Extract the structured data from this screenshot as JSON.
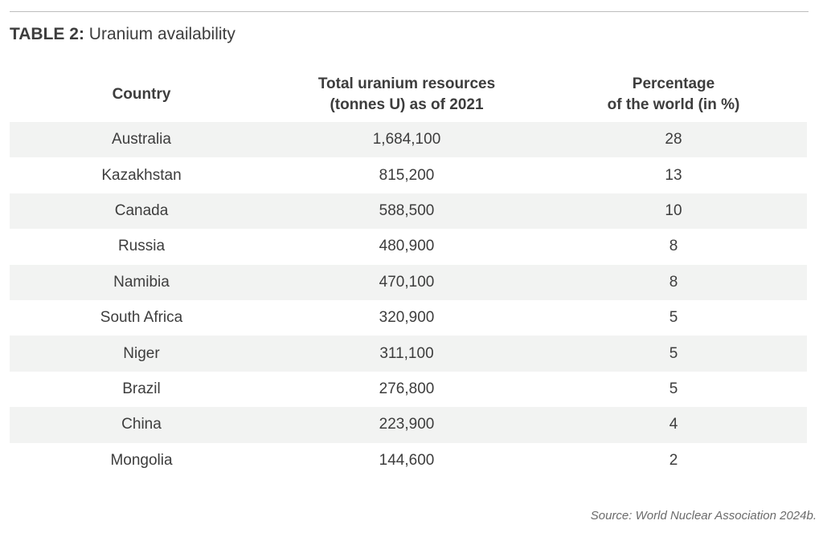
{
  "title": {
    "label": "TABLE 2:",
    "text": "Uranium availability"
  },
  "table": {
    "headers": {
      "country": "Country",
      "total_line1": "Total uranium resources",
      "total_line2": "(tonnes U) as of 2021",
      "pct_line1": "Percentage",
      "pct_line2": "of the world (in %)"
    },
    "rows": [
      {
        "country": "Australia",
        "total": "1,684,100",
        "pct": "28"
      },
      {
        "country": "Kazakhstan",
        "total": "815,200",
        "pct": "13"
      },
      {
        "country": "Canada",
        "total": "588,500",
        "pct": "10"
      },
      {
        "country": "Russia",
        "total": "480,900",
        "pct": "8"
      },
      {
        "country": "Namibia",
        "total": "470,100",
        "pct": "8"
      },
      {
        "country": "South Africa",
        "total": "320,900",
        "pct": "5"
      },
      {
        "country": "Niger",
        "total": "311,100",
        "pct": "5"
      },
      {
        "country": "Brazil",
        "total": "276,800",
        "pct": "5"
      },
      {
        "country": "China",
        "total": "223,900",
        "pct": "4"
      },
      {
        "country": "Mongolia",
        "total": "144,600",
        "pct": "2"
      }
    ]
  },
  "source": "Source: World Nuclear Association 2024b.",
  "colors": {
    "text": "#3d3d3d",
    "row_shade": "#f2f3f2",
    "rule": "#bdbdbd"
  }
}
